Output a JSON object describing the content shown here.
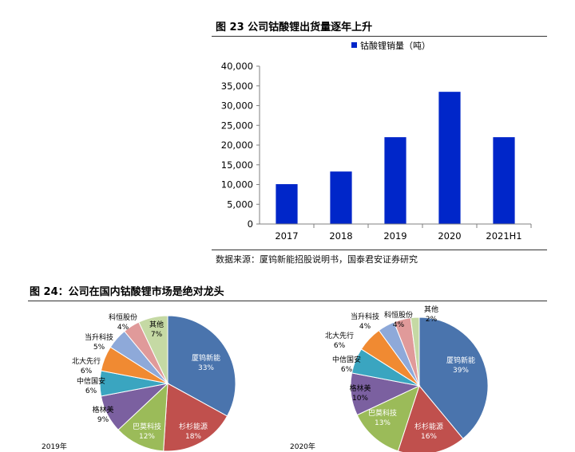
{
  "figures": {
    "fig23_title": "图 23 公司钴酸锂出货量逐年上升",
    "fig23_source": "数据来源：厦钨新能招股说明书，国泰君安证券研究",
    "fig24_title": "图 24：公司在国内钴酸锂市场是绝对龙头"
  },
  "colors": {
    "bar": "#0026c9",
    "pie": [
      "#4a74ad",
      "#c0504d",
      "#9bbb59",
      "#7b60a0",
      "#3aa5c0",
      "#f08a32",
      "#8ea9d9",
      "#e09a9a",
      "#c5d9a4"
    ]
  },
  "chart_data": [
    {
      "type": "bar",
      "categories": [
        "2017",
        "2018",
        "2019",
        "2020",
        "2021H1"
      ],
      "series": [
        {
          "name": "钴酸锂销量（吨）",
          "values": [
            10100,
            13300,
            22000,
            33500,
            22000
          ]
        }
      ],
      "ylim": [
        0,
        40000
      ],
      "yticks": [
        "0",
        "5,000",
        "10,000",
        "15,000",
        "20,000",
        "25,000",
        "30,000",
        "35,000",
        "40,000"
      ],
      "legend": "top",
      "grid": false
    },
    {
      "type": "pie",
      "caption": "2019年",
      "slices": [
        {
          "name": "厦钨新能",
          "value": 33,
          "label": "33%"
        },
        {
          "name": "杉杉能源",
          "value": 18,
          "label": "18%"
        },
        {
          "name": "巴莫科技",
          "value": 12,
          "label": "12%"
        },
        {
          "name": "格林美",
          "value": 9,
          "label": "9%"
        },
        {
          "name": "中信国安",
          "value": 6,
          "label": "6%"
        },
        {
          "name": "北大先行",
          "value": 6,
          "label": "6%"
        },
        {
          "name": "当升科技",
          "value": 5,
          "label": "5%"
        },
        {
          "name": "科恒股份",
          "value": 4,
          "label": "4%"
        },
        {
          "name": "其他",
          "value": 7,
          "label": "7%"
        }
      ]
    },
    {
      "type": "pie",
      "caption": "2020年",
      "slices": [
        {
          "name": "厦钨新能",
          "value": 39,
          "label": "39%"
        },
        {
          "name": "杉杉能源",
          "value": 16,
          "label": "16%"
        },
        {
          "name": "巴莫科技",
          "value": 13,
          "label": "13%"
        },
        {
          "name": "格林美",
          "value": 10,
          "label": "10%"
        },
        {
          "name": "中信国安",
          "value": 6,
          "label": "6%"
        },
        {
          "name": "北大先行",
          "value": 6,
          "label": "6%"
        },
        {
          "name": "当升科技",
          "value": 4,
          "label": "4%"
        },
        {
          "name": "科恒股份",
          "value": 4,
          "label": "4%"
        },
        {
          "name": "其他",
          "value": 2,
          "label": "2%"
        }
      ]
    }
  ]
}
